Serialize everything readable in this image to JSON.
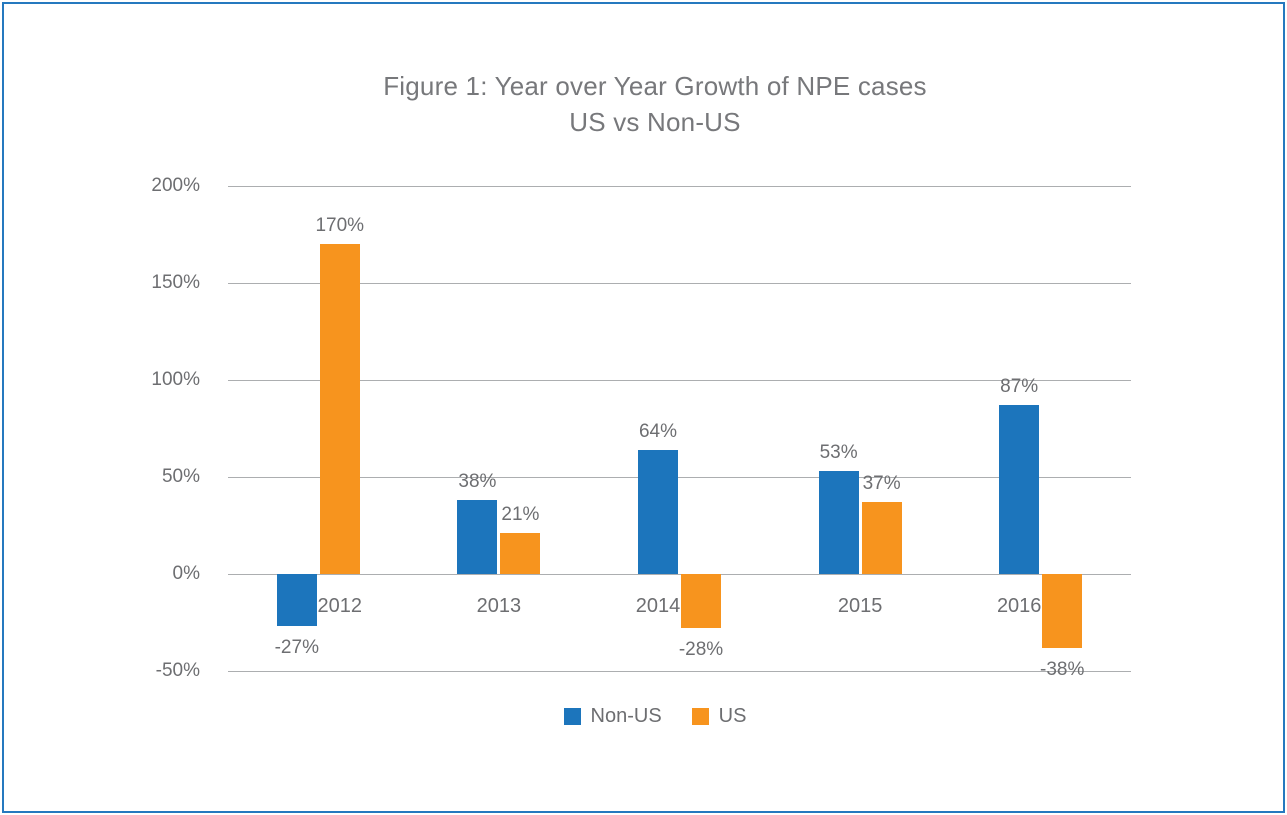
{
  "figure": {
    "title_line1": "Figure 1: Year over Year Growth of NPE cases",
    "title_line2": "US vs Non-US"
  },
  "chart_data": {
    "type": "bar",
    "title": "Figure 1: Year over Year Growth of NPE cases US vs Non-US",
    "categories": [
      "2012",
      "2013",
      "2014",
      "2015",
      "2016"
    ],
    "series": [
      {
        "name": "Non-US",
        "color": "#1C75BC",
        "values": [
          -27,
          38,
          64,
          53,
          87
        ]
      },
      {
        "name": "US",
        "color": "#F7941E",
        "values": [
          170,
          21,
          -28,
          37,
          -38
        ]
      }
    ],
    "value_suffix": "%",
    "y_ticks": [
      200,
      150,
      100,
      50,
      0,
      -50
    ],
    "y_tick_suffix": "%",
    "ylim": [
      -50,
      200
    ],
    "grid": true,
    "legend_position": "bottom",
    "data_labels_shown": true,
    "xlabel": "",
    "ylabel": ""
  },
  "colors": {
    "frame_border": "#2579BF",
    "gridline": "#ACAEB0",
    "text_gray": "#6D6E71",
    "title_gray": "#77787B",
    "non_us_blue": "#1C75BC",
    "us_orange": "#F7941E"
  }
}
